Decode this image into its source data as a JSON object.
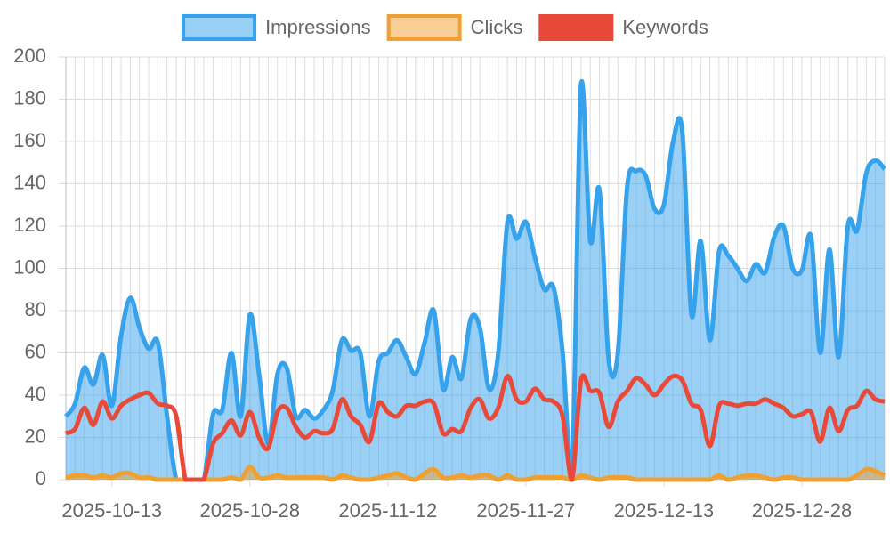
{
  "chart_data": {
    "type": "line",
    "categories": [
      null,
      null,
      null,
      null,
      null,
      "2025-10-13",
      null,
      null,
      null,
      null,
      null,
      null,
      null,
      null,
      null,
      null,
      null,
      null,
      null,
      null,
      "2025-10-28",
      null,
      null,
      null,
      null,
      null,
      null,
      null,
      null,
      null,
      null,
      null,
      null,
      null,
      null,
      "2025-11-12",
      null,
      null,
      null,
      null,
      null,
      null,
      null,
      null,
      null,
      null,
      null,
      null,
      null,
      null,
      "2025-11-27",
      null,
      null,
      null,
      null,
      null,
      null,
      null,
      null,
      null,
      null,
      null,
      null,
      null,
      null,
      "2025-12-13",
      null,
      null,
      null,
      null,
      null,
      null,
      null,
      null,
      null,
      null,
      null,
      null,
      null,
      null,
      "2025-12-28",
      null,
      null,
      null,
      null,
      null,
      null,
      null,
      null,
      null
    ],
    "series": [
      {
        "name": "Impressions",
        "color": "#36a2eb",
        "fill": "rgba(54,162,235,0.5)",
        "values": [
          30,
          36,
          53,
          45,
          59,
          35,
          68,
          86,
          72,
          62,
          65,
          30,
          0,
          0,
          0,
          0,
          31,
          33,
          60,
          30,
          78,
          50,
          17,
          50,
          53,
          30,
          33,
          29,
          33,
          42,
          66,
          61,
          60,
          30,
          56,
          60,
          66,
          58,
          50,
          65,
          80,
          43,
          58,
          48,
          76,
          72,
          43,
          60,
          122,
          114,
          122,
          105,
          90,
          91,
          60,
          0,
          187,
          113,
          137,
          57,
          60,
          138,
          146,
          144,
          128,
          130,
          160,
          165,
          78,
          113,
          66,
          108,
          106,
          100,
          94,
          102,
          98,
          115,
          120,
          100,
          99,
          115,
          60,
          109,
          58,
          120,
          118,
          145,
          151,
          147
        ]
      },
      {
        "name": "Clicks",
        "color": "#f0a030",
        "fill": "rgba(240,160,48,0.5)",
        "values": [
          1,
          2,
          2,
          1,
          2,
          1,
          3,
          3,
          1,
          1,
          0,
          0,
          0,
          0,
          0,
          0,
          0,
          0,
          1,
          0,
          6,
          1,
          1,
          2,
          1,
          1,
          1,
          1,
          1,
          0,
          2,
          1,
          0,
          0,
          1,
          2,
          3,
          1,
          0,
          3,
          5,
          1,
          1,
          2,
          1,
          2,
          2,
          0,
          2,
          0,
          0,
          1,
          1,
          1,
          1,
          0,
          2,
          1,
          0,
          1,
          1,
          1,
          0,
          0,
          0,
          0,
          0,
          0,
          0,
          0,
          0,
          2,
          0,
          1,
          2,
          2,
          1,
          0,
          1,
          1,
          0,
          0,
          0,
          0,
          0,
          0,
          2,
          5,
          4,
          2
        ]
      },
      {
        "name": "Keywords",
        "color": "#e84a3a",
        "fill": null,
        "values": [
          22,
          24,
          34,
          26,
          37,
          29,
          35,
          38,
          40,
          41,
          36,
          35,
          30,
          0,
          0,
          0,
          17,
          22,
          28,
          21,
          32,
          20,
          15,
          32,
          34,
          25,
          20,
          23,
          22,
          24,
          38,
          30,
          26,
          18,
          36,
          32,
          30,
          35,
          35,
          37,
          36,
          22,
          24,
          23,
          34,
          38,
          29,
          34,
          49,
          38,
          37,
          43,
          38,
          37,
          30,
          0,
          47,
          42,
          41,
          25,
          37,
          42,
          48,
          45,
          40,
          45,
          49,
          47,
          36,
          33,
          16,
          35,
          36,
          35,
          36,
          36,
          38,
          36,
          34,
          30,
          31,
          32,
          18,
          34,
          23,
          33,
          35,
          42,
          38,
          37
        ]
      }
    ],
    "ylim": [
      0,
      200
    ],
    "yticks": [
      0,
      20,
      40,
      60,
      80,
      100,
      120,
      140,
      160,
      180,
      200
    ],
    "grid": true,
    "legend": "top"
  }
}
